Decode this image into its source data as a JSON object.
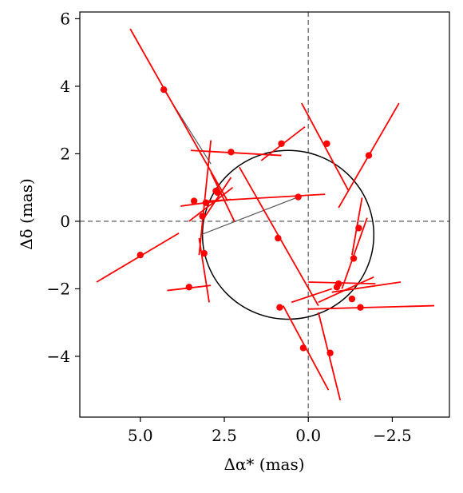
{
  "chart_data": {
    "type": "scatter",
    "xlabel": "Δα* (mas)",
    "ylabel": "Δδ (mas)",
    "xlim": [
      6.8,
      -4.2
    ],
    "ylim": [
      -5.8,
      6.2
    ],
    "x_inverted": true,
    "xticks": [
      5.0,
      2.5,
      0.0,
      -2.5
    ],
    "xtick_labels": [
      "5.0",
      "2.5",
      "0.0",
      "−2.5"
    ],
    "yticks": [
      -4,
      -2,
      0,
      2,
      4,
      6
    ],
    "ytick_labels": [
      "−4",
      "−2",
      "0",
      "2",
      "4",
      "6"
    ],
    "grid": false,
    "reference_lines": {
      "x": 0,
      "y": 0,
      "style": "dashed",
      "color": "#808080"
    },
    "ellipse": {
      "center": [
        0.6,
        -0.4
      ],
      "semi_axes": [
        2.55,
        2.5
      ],
      "color": "#000000"
    },
    "point_color": "#ff0000",
    "segment_color": "#ff0000",
    "residual_color": "#555555",
    "series": [
      {
        "points": [
          {
            "x": 4.3,
            "y": 3.9,
            "segment": [
              [
                5.3,
                5.7
              ],
              [
                2.4,
                0.6
              ]
            ],
            "model": [
              2.9,
              1.7
            ]
          },
          {
            "x": 2.3,
            "y": 2.05,
            "segment": [
              [
                3.5,
                2.1
              ],
              [
                0.8,
                1.95
              ]
            ]
          },
          {
            "x": 0.8,
            "y": 2.3,
            "segment": [
              [
                1.4,
                1.8
              ],
              [
                0.1,
                2.8
              ]
            ]
          },
          {
            "x": -0.55,
            "y": 2.3,
            "segment": [
              [
                0.2,
                3.5
              ],
              [
                -1.2,
                0.9
              ]
            ]
          },
          {
            "x": -1.8,
            "y": 1.95,
            "segment": [
              [
                -0.9,
                0.4
              ],
              [
                -2.7,
                3.5
              ]
            ]
          },
          {
            "x": 3.15,
            "y": 0.15,
            "segment": [
              [
                3.25,
                -1.0
              ],
              [
                2.9,
                2.4
              ]
            ]
          },
          {
            "x": 3.05,
            "y": 0.55,
            "segment": [
              [
                3.8,
                0.45
              ],
              [
                2.3,
                0.65
              ]
            ]
          },
          {
            "x": 3.4,
            "y": 0.6,
            "segment": [
              [
                3.55,
                0.0
              ],
              [
                2.25,
                1.0
              ]
            ]
          },
          {
            "x": 2.75,
            "y": 0.9,
            "segment": [
              [
                3.1,
                0.1
              ],
              [
                2.3,
                1.3
              ]
            ]
          },
          {
            "x": 2.7,
            "y": 0.85,
            "segment": [
              [
                2.9,
                1.45
              ],
              [
                2.2,
                0.0
              ]
            ]
          },
          {
            "x": 0.3,
            "y": 0.72,
            "segment": [
              [
                3.0,
                0.6
              ],
              [
                -0.5,
                0.8
              ]
            ],
            "model": [
              3.2,
              -0.4
            ]
          },
          {
            "x": 0.9,
            "y": -0.5,
            "segment": [
              [
                2.05,
                1.6
              ],
              [
                -0.3,
                -2.5
              ]
            ]
          },
          {
            "x": -1.5,
            "y": -0.2,
            "segment": [
              [
                -1.3,
                -1.0
              ],
              [
                -1.6,
                0.7
              ]
            ]
          },
          {
            "x": -1.35,
            "y": -1.1,
            "segment": [
              [
                -1.0,
                -2.0
              ],
              [
                -1.75,
                0.1
              ]
            ]
          },
          {
            "x": 5.0,
            "y": -1.0,
            "segment": [
              [
                6.3,
                -1.8
              ],
              [
                3.85,
                -0.35
              ]
            ]
          },
          {
            "x": 3.1,
            "y": -0.95,
            "segment": [
              [
                3.25,
                -0.5
              ],
              [
                2.95,
                -2.4
              ]
            ]
          },
          {
            "x": 3.55,
            "y": -1.95,
            "segment": [
              [
                4.2,
                -2.05
              ],
              [
                2.9,
                -1.9
              ]
            ]
          },
          {
            "x": -0.9,
            "y": -1.85,
            "segment": [
              [
                0.0,
                -1.8
              ],
              [
                -2.0,
                -1.85
              ]
            ]
          },
          {
            "x": -0.85,
            "y": -1.95,
            "segment": [
              [
                -0.3,
                -2.4
              ],
              [
                -1.95,
                -1.65
              ]
            ]
          },
          {
            "x": -1.3,
            "y": -2.3,
            "segment": [
              [
                -0.7,
                -2.1
              ],
              [
                -2.75,
                -1.8
              ]
            ]
          },
          {
            "x": -1.55,
            "y": -2.55,
            "segment": [
              [
                0.0,
                -2.6
              ],
              [
                -3.75,
                -2.5
              ]
            ]
          },
          {
            "x": 0.85,
            "y": -2.55,
            "segment": [
              [
                0.75,
                -2.5
              ],
              [
                -0.6,
                -5.0
              ]
            ]
          },
          {
            "x": 0.15,
            "y": -3.75,
            "segment": [
              [
                0.5,
                -2.4
              ],
              [
                -0.7,
                -2.0
              ]
            ]
          },
          {
            "x": -0.65,
            "y": -3.9,
            "segment": [
              [
                -0.3,
                -2.7
              ],
              [
                -0.95,
                -5.3
              ]
            ]
          }
        ]
      }
    ]
  }
}
